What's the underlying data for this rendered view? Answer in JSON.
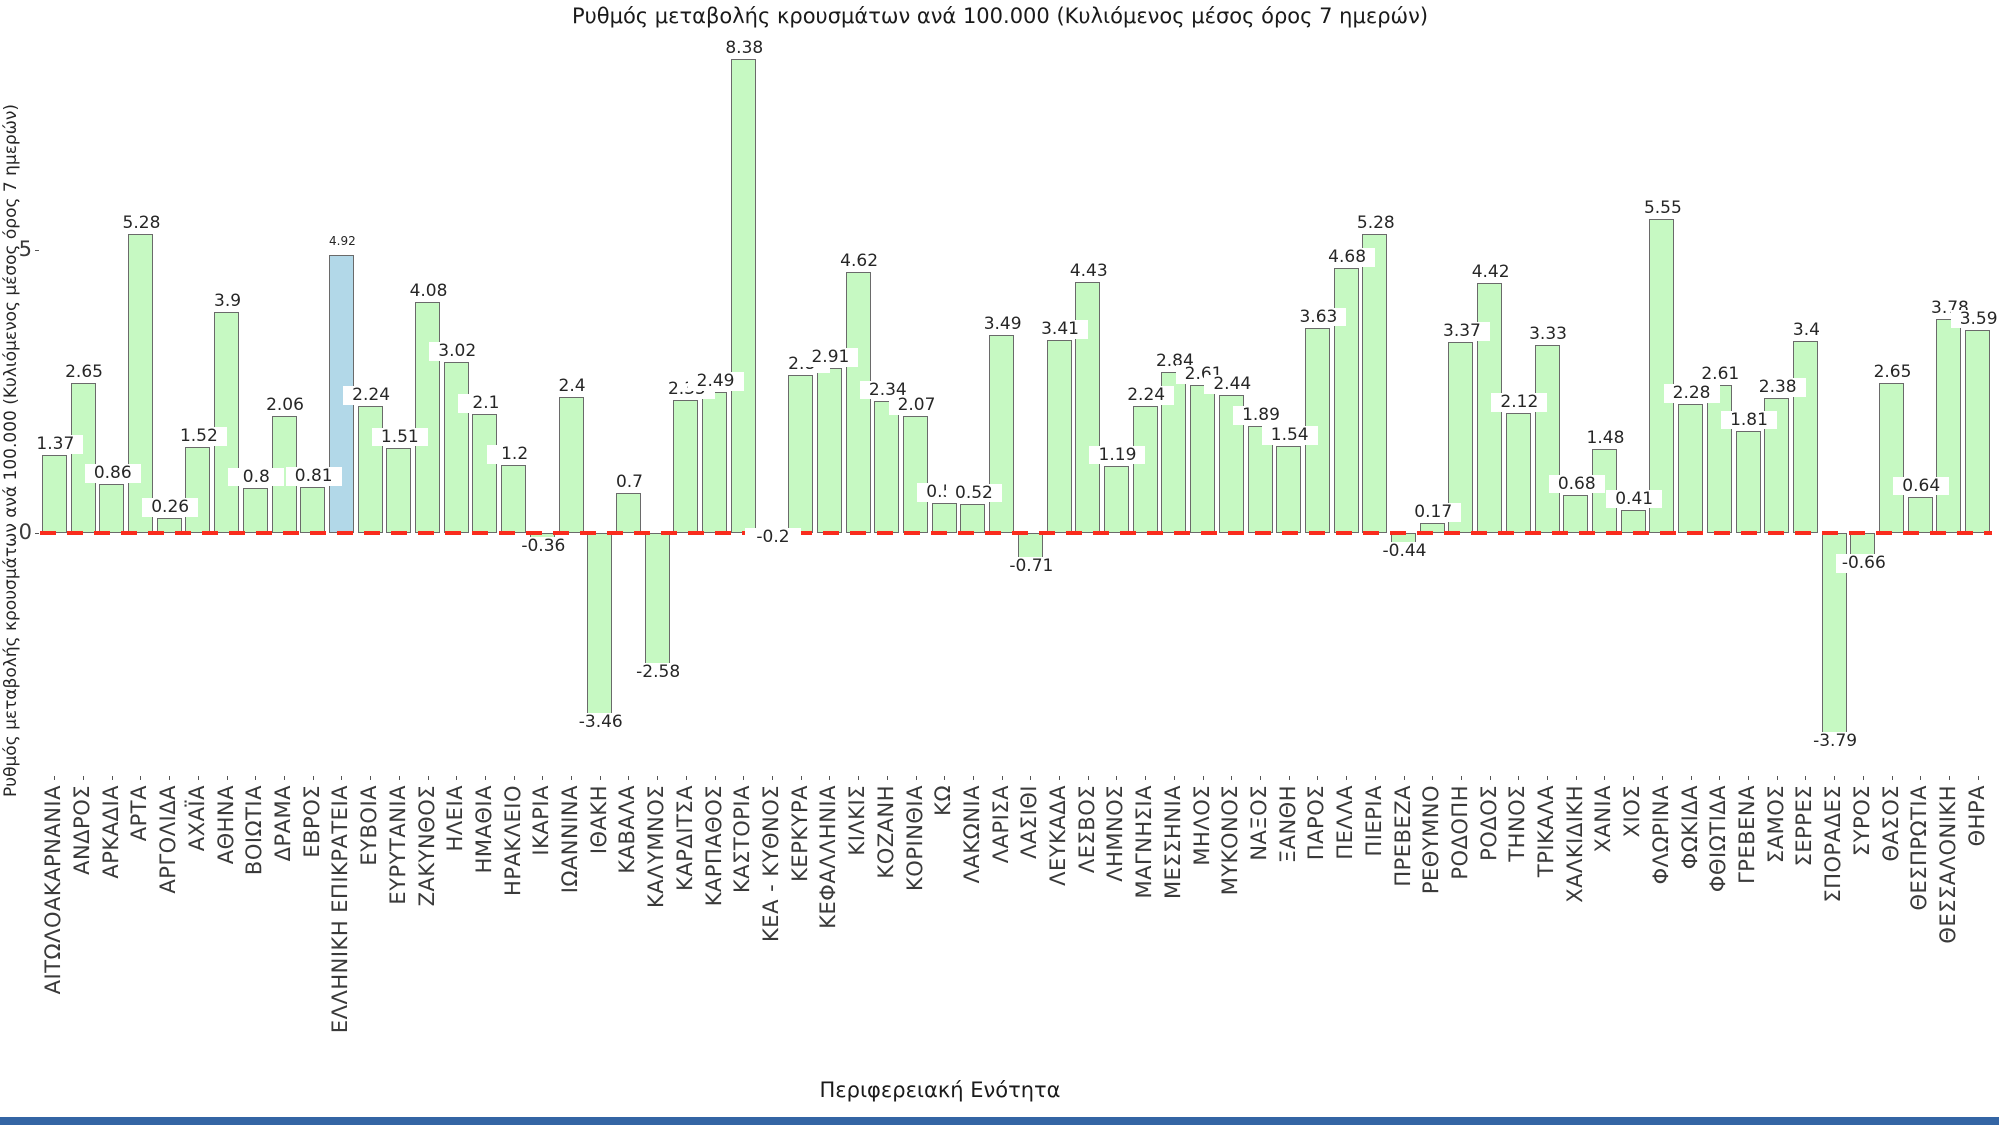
{
  "chart_data": {
    "type": "bar",
    "title": "Ρυθμός μεταβολής κρουσμάτων ανά 100.000 (Κυλιόμενος μέσος όρος 7 ημερών)",
    "xlabel": "Περιφερειακή Ενότητα",
    "ylabel": "Ρυθμός μεταβολής κρουσμάτων ανά 100.000 (Κυλιόμενος μέσος όρος 7 ημερών)",
    "yticks": [
      0,
      5
    ],
    "ylim": [
      -4.4,
      8.9
    ],
    "grid": false,
    "legend": "none",
    "zero_line_style": "dashed",
    "zero_line_color": "#f92c1d",
    "bar_fill": "#c6f9c2",
    "bar_edge": "#6a6a6a",
    "highlight_fill": "#b2d8e8",
    "highlight_category": "ΕΛΛΗΝΙΚΗ ΕΠΙΚΡΑΤΕΙΑ",
    "footer_strip_color": "#3465a4",
    "categories": [
      "ΑΙΤΩΛΟΑΚΑΡΝΑΝΙΑ",
      "ΑΝΔΡΟΣ",
      "ΑΡΚΑΔΙΑ",
      "ΑΡΤΑ",
      "ΑΡΓΟΛΙΔΑ",
      "ΑΧΑΪΑ",
      "ΑΘΗΝΑ",
      "ΒΟΙΩΤΙΑ",
      "ΔΡΑΜΑ",
      "ΕΒΡΟΣ",
      "ΕΛΛΗΝΙΚΗ ΕΠΙΚΡΑΤΕΙΑ",
      "ΕΥΒΟΙΑ",
      "ΕΥΡΥΤΑΝΙΑ",
      "ΖΑΚΥΝΘΟΣ",
      "ΗΛΕΙΑ",
      "ΗΜΑΘΙΑ",
      "ΗΡΑΚΛΕΙΟ",
      "ΙΚΑΡΙΑ",
      "ΙΩΑΝΝΙΝΑ",
      "ΙΘΑΚΗ",
      "ΚΑΒΑΛΑ",
      "ΚΑΛΥΜΝΟΣ",
      "ΚΑΡΔΙΤΣΑ",
      "ΚΑΡΠΑΘΟΣ",
      "ΚΑΣΤΟΡΙΑ",
      "ΚΕΑ - ΚΥΘΝΟΣ",
      "ΚΕΡΚΥΡΑ",
      "ΚΕΦΑΛΛΗΝΙΑ",
      "ΚΙΛΚΙΣ",
      "ΚΟΖΑΝΗ",
      "ΚΟΡΙΝΘΙΑ",
      "ΚΩ",
      "ΛΑΚΩΝΙΑ",
      "ΛΑΡΙΣΑ",
      "ΛΑΣΙΘΙ",
      "ΛΕΥΚΑΔΑ",
      "ΛΕΣΒΟΣ",
      "ΛΗΜΝΟΣ",
      "ΜΑΓΝΗΣΙΑ",
      "ΜΕΣΣΗΝΙΑ",
      "ΜΗΛΟΣ",
      "ΜΥΚΟΝΟΣ",
      "ΝΑΞΟΣ",
      "ΞΑΝΘΗ",
      "ΠΑΡΟΣ",
      "ΠΕΛΛΑ",
      "ΠΙΕΡΙΑ",
      "ΠΡΕΒΕΖΑ",
      "ΡΕΘΥΜΝΟ",
      "ΡΟΔΟΠΗ",
      "ΡΟΔΟΣ",
      "ΤΗΝΟΣ",
      "ΤΡΙΚΑΛΑ",
      "ΧΑΛΚΙΔΙΚΗ",
      "ΧΑΝΙΑ",
      "ΧΙΟΣ",
      "ΦΛΩΡΙΝΑ",
      "ΦΩΚΙΔΑ",
      "ΦΘΙΩΤΙΔΑ",
      "ΓΡΕΒΕΝΑ",
      "ΣΑΜΟΣ",
      "ΣΕΡΡΕΣ",
      "ΣΠΟΡΑΔΕΣ",
      "ΣΥΡΟΣ",
      "ΘΑΣΟΣ",
      "ΘΕΣΠΡΩΤΙΑ",
      "ΘΕΣΣΑΛΟΝΙΚΗ",
      "ΘΗΡΑ"
    ],
    "values": [
      1.37,
      2.65,
      0.86,
      5.28,
      0.26,
      1.52,
      3.9,
      0.8,
      2.06,
      0.81,
      4.92,
      2.24,
      1.51,
      4.08,
      3.02,
      2.1,
      1.2,
      -0.36,
      2.4,
      -3.46,
      0.7,
      -2.58,
      2.35,
      2.49,
      8.38,
      -0.2,
      2.8,
      2.91,
      4.62,
      2.34,
      2.07,
      0.53,
      0.52,
      3.49,
      -0.71,
      3.41,
      4.43,
      1.19,
      2.24,
      2.84,
      2.61,
      2.44,
      1.89,
      1.54,
      3.63,
      4.68,
      5.28,
      -0.44,
      0.17,
      3.37,
      4.42,
      2.12,
      3.33,
      0.68,
      1.48,
      0.41,
      5.55,
      2.28,
      2.61,
      1.81,
      2.38,
      3.4,
      -3.79,
      -0.66,
      2.65,
      0.64,
      3.78,
      3.59
    ]
  }
}
